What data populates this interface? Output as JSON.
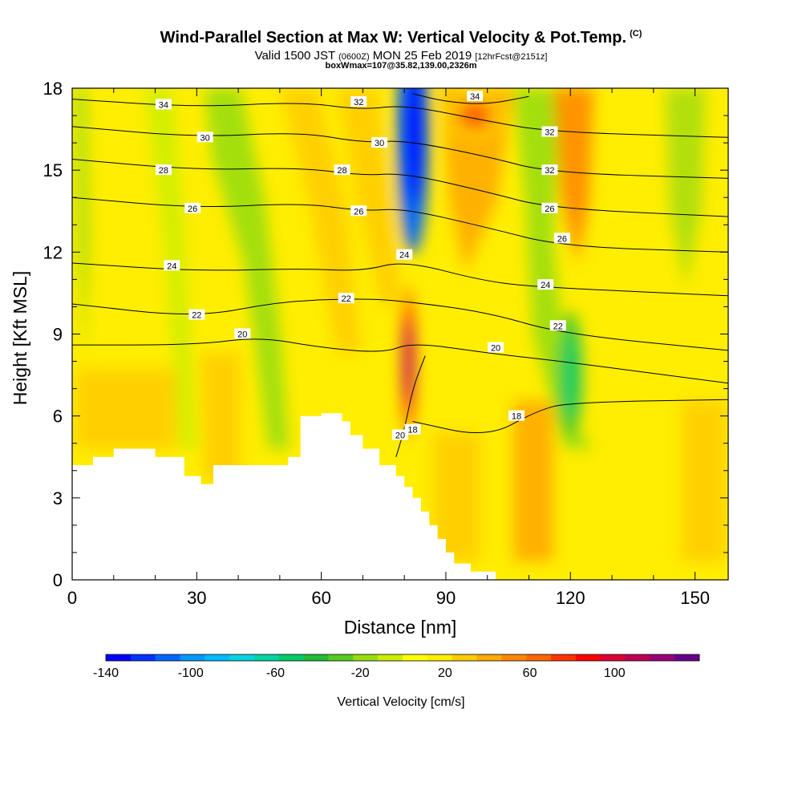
{
  "header": {
    "title": "Wind-Parallel Section at Max W: Vertical Velocity & Pot.Temp.",
    "title_unit": "(C)",
    "valid_main_a": "Valid 1500 JST",
    "valid_small_a": "(0600Z)",
    "valid_main_b": "MON 25 Feb 2019",
    "valid_small_b": "[12hrFcst@2151z]",
    "subtitle2": "boxWmax=107@35.82,139.00,2326m"
  },
  "chart_data": {
    "type": "heatmap",
    "xlabel": "Distance [nm]",
    "ylabel": "Height [Kft MSL]",
    "xlim": [
      0,
      158
    ],
    "ylim": [
      0,
      18
    ],
    "x_ticks": [
      "0",
      "30",
      "60",
      "90",
      "120",
      "150"
    ],
    "x_tick_values": [
      0,
      30,
      60,
      90,
      120,
      150
    ],
    "y_ticks": [
      "0",
      "3",
      "6",
      "9",
      "12",
      "15",
      "18"
    ],
    "y_tick_values": [
      0,
      3,
      6,
      9,
      12,
      15,
      18
    ],
    "background_value": 15,
    "w_features": [
      {
        "name": "downdraft core",
        "x": 82,
        "y": 16.5,
        "value": -110
      },
      {
        "name": "updraft core",
        "x": 81,
        "y": 8,
        "value": 107
      },
      {
        "name": "upper updraft",
        "x": 97,
        "y": 17,
        "value": 60
      },
      {
        "name": "downdraft band",
        "x": 120,
        "y": 7.5,
        "value": -50
      }
    ],
    "isentropes": [
      {
        "label": "34",
        "points": [
          [
            82,
            17.8
          ],
          [
            90,
            17.5
          ],
          [
            100,
            17.4
          ],
          [
            110,
            17.7
          ]
        ]
      },
      {
        "label": "32",
        "points": [
          [
            0,
            17.6
          ],
          [
            30,
            17.3
          ],
          [
            55,
            17.5
          ],
          [
            70,
            17.2
          ],
          [
            80,
            17.4
          ],
          [
            100,
            16.8
          ],
          [
            115,
            16.4
          ],
          [
            158,
            16.2
          ]
        ]
      },
      {
        "label": "30",
        "points": [
          [
            0,
            16.6
          ],
          [
            30,
            16.2
          ],
          [
            55,
            16.4
          ],
          [
            70,
            16.0
          ],
          [
            80,
            16.1
          ],
          [
            100,
            15.5
          ],
          [
            115,
            14.9
          ],
          [
            158,
            14.7
          ]
        ]
      },
      {
        "label": "28",
        "points": [
          [
            0,
            15.4
          ],
          [
            30,
            15.0
          ],
          [
            55,
            15.1
          ],
          [
            70,
            14.8
          ],
          [
            80,
            14.9
          ],
          [
            100,
            14.2
          ],
          [
            115,
            13.6
          ],
          [
            158,
            13.3
          ]
        ]
      },
      {
        "label": "26",
        "points": [
          [
            0,
            14.0
          ],
          [
            30,
            13.6
          ],
          [
            55,
            13.8
          ],
          [
            70,
            13.5
          ],
          [
            80,
            13.6
          ],
          [
            100,
            12.9
          ],
          [
            118,
            12.2
          ],
          [
            158,
            12.0
          ]
        ]
      },
      {
        "label": "24",
        "points": [
          [
            0,
            11.6
          ],
          [
            30,
            11.3
          ],
          [
            55,
            11.4
          ],
          [
            70,
            11.3
          ],
          [
            80,
            11.7
          ],
          [
            100,
            10.9
          ],
          [
            115,
            10.7
          ],
          [
            158,
            10.4
          ]
        ]
      },
      {
        "label": "22",
        "points": [
          [
            0,
            10.1
          ],
          [
            30,
            9.6
          ],
          [
            50,
            10.2
          ],
          [
            70,
            10.3
          ],
          [
            80,
            10.2
          ],
          [
            100,
            9.8
          ],
          [
            118,
            9.0
          ],
          [
            158,
            8.4
          ]
        ]
      },
      {
        "label": "20",
        "points": [
          [
            0,
            8.6
          ],
          [
            30,
            8.6
          ],
          [
            45,
            8.9
          ],
          [
            60,
            8.5
          ],
          [
            75,
            8.3
          ],
          [
            82,
            8.7
          ],
          [
            100,
            8.3
          ],
          [
            118,
            8.0
          ],
          [
            158,
            7.2
          ]
        ]
      },
      {
        "label": "18",
        "points": [
          [
            82,
            5.8
          ],
          [
            100,
            5.2
          ],
          [
            112,
            6.2
          ],
          [
            120,
            6.5
          ],
          [
            158,
            6.6
          ]
        ]
      },
      {
        "label": "20",
        "points": [
          [
            78,
            4.5
          ],
          [
            80,
            5.5
          ],
          [
            82,
            7.0
          ],
          [
            85,
            8.2
          ]
        ]
      }
    ],
    "contour_labels": [
      "34",
      "32",
      "30",
      "28",
      "26",
      "24",
      "22",
      "20",
      "18"
    ],
    "colorbar": {
      "label": "Vertical Velocity [cm/s]",
      "min": -140,
      "max": 140,
      "tick_labels": [
        "-140",
        "-100",
        "-60",
        "-20",
        "20",
        "60",
        "100"
      ],
      "tick_values": [
        -140,
        -100,
        -60,
        -20,
        20,
        60,
        100
      ],
      "colors": [
        "#0000ff",
        "#0033ff",
        "#0066ff",
        "#0099ff",
        "#00bbff",
        "#00d4e0",
        "#00d4a0",
        "#00cc66",
        "#22bb33",
        "#55cc22",
        "#99dd11",
        "#ccee00",
        "#ffff00",
        "#ffee00",
        "#ffcc00",
        "#ffaa00",
        "#ff8800",
        "#ff6600",
        "#ff3300",
        "#ff0000",
        "#dd0033",
        "#bb0055",
        "#990077",
        "#660088"
      ]
    }
  }
}
